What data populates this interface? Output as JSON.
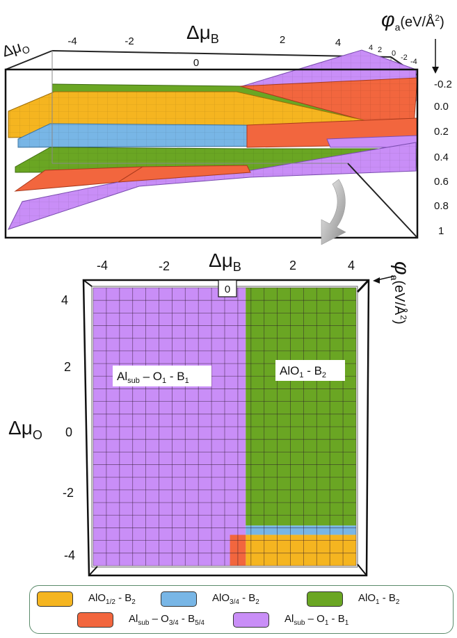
{
  "chart_data": [
    {
      "type": "surface-3d",
      "xlabel_main": "Δμ",
      "xlabel_sub": "B",
      "ylabel_main": "Δμ",
      "ylabel_sub": "O",
      "zlabel_prefix": "φ",
      "zlabel_sub": "a",
      "zlabel_unit": "(eV/Å",
      "zlabel_exp": "2",
      "zlabel_close": ")",
      "x_ticks": [
        "-4",
        "-2",
        "0",
        "2",
        "4"
      ],
      "y_ticks": [
        "4",
        "2",
        "0",
        "-2",
        "-4"
      ],
      "z_ticks": [
        "-0.2",
        "0.0",
        "0.2",
        "0.4",
        "0.6",
        "0.8",
        "1"
      ],
      "colors": {
        "AlO_half_B2": "#f5b520",
        "AlO_3_4_B2": "#78b6e6",
        "AlO1_B2": "#6aa623",
        "Alsub_O3_4_B5_4": "#f2663e",
        "Alsub_O1_B1": "#c98ef7"
      }
    },
    {
      "type": "heatmap",
      "xlabel_main": "Δμ",
      "xlabel_sub": "B",
      "ylabel_main": "Δμ",
      "ylabel_sub": "O",
      "zlabel_prefix": "φ",
      "zlabel_sub": "a",
      "zlabel_unit": "(eV/Å",
      "zlabel_exp": "2",
      "zlabel_close": ")",
      "x_ticks": [
        "-4",
        "-2",
        "0",
        "2",
        "4"
      ],
      "y_ticks": [
        "4",
        "2",
        "0",
        "-2",
        "-4"
      ],
      "xlim": [
        -5,
        5
      ],
      "ylim": [
        -4.5,
        4.5
      ],
      "regions": [
        {
          "id": "Alsub_O1_B1",
          "x_range": [
            -5,
            0.8
          ],
          "y_range": [
            -4.5,
            4.5
          ]
        },
        {
          "id": "AlO1_B2",
          "x_range": [
            0.8,
            5
          ],
          "y_range": [
            -3.2,
            4.5
          ]
        },
        {
          "id": "AlO_3_4_B2",
          "x_range": [
            0.8,
            5
          ],
          "y_range": [
            -3.5,
            -3.2
          ]
        },
        {
          "id": "AlO_half_B2",
          "x_range": [
            0.8,
            5
          ],
          "y_range": [
            -4.5,
            -3.5
          ]
        },
        {
          "id": "Alsub_O3_4_B5_4",
          "x_range": [
            0.2,
            0.8
          ],
          "y_range": [
            -4.5,
            -3.5
          ]
        }
      ],
      "annotations": [
        {
          "main": "Al",
          "sub": "sub",
          "rest": " – O",
          "sub2": "1",
          "rest2": " - B",
          "sub3": "1"
        },
        {
          "main": "AlO",
          "sub": "1",
          "rest": " - B",
          "sub2": "2"
        }
      ],
      "marker_label": "0"
    }
  ],
  "legend": [
    {
      "id": "AlO_half_B2",
      "main": "AlO",
      "sub": "1/2",
      "rest": " - B",
      "sub2": "2",
      "color": "#f5b520"
    },
    {
      "id": "AlO_3_4_B2",
      "main": "AlO",
      "sub": "3/4",
      "rest": " - B",
      "sub2": "2",
      "color": "#78b6e6"
    },
    {
      "id": "AlO1_B2",
      "main": "AlO",
      "sub": "1",
      "rest": " - B",
      "sub2": "2",
      "color": "#6aa623"
    },
    {
      "id": "Alsub_O3_4_B5_4",
      "main": "Al",
      "sub": "sub",
      "rest": " – O",
      "sub2": "3/4",
      "rest2": " - B",
      "sub3": "5/4",
      "color": "#f2663e"
    },
    {
      "id": "Alsub_O1_B1",
      "main": "Al",
      "sub": "sub",
      "rest": " – O",
      "sub2": "1",
      "rest2": " - B",
      "sub3": "1",
      "color": "#c98ef7"
    }
  ]
}
